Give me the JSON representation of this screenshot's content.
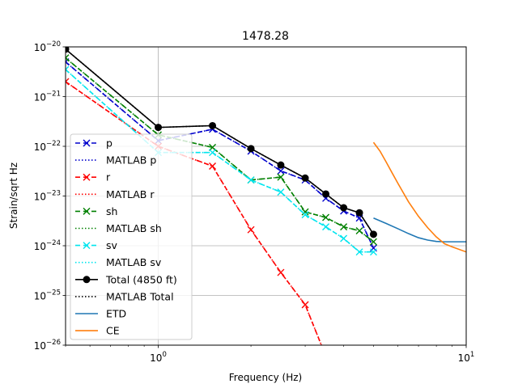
{
  "chart_data": {
    "type": "line",
    "title": "1478.28",
    "xlabel": "Frequency (Hz)",
    "ylabel": "Strain/sqrt Hz",
    "xscale": "log",
    "yscale": "log",
    "xlim": [
      0.5,
      10
    ],
    "ylim": [
      1e-26,
      1e-20
    ],
    "grid": true,
    "legend_position": "lower-left",
    "x_ticks": [
      {
        "value": 1,
        "base": "10",
        "exp": "0"
      },
      {
        "value": 10,
        "base": "10",
        "exp": "1"
      }
    ],
    "y_ticks": [
      {
        "value": 1e-26,
        "base": "10",
        "exp": "−26"
      },
      {
        "value": 1e-25,
        "base": "10",
        "exp": "−25"
      },
      {
        "value": 1e-24,
        "base": "10",
        "exp": "−24"
      },
      {
        "value": 1e-23,
        "base": "10",
        "exp": "−23"
      },
      {
        "value": 1e-22,
        "base": "10",
        "exp": "−22"
      },
      {
        "value": 1e-21,
        "base": "10",
        "exp": "−21"
      },
      {
        "value": 1e-20,
        "base": "10",
        "exp": "−20"
      }
    ],
    "series": [
      {
        "id": "p",
        "name": "p",
        "color": "#0000cc",
        "dash": "6,4",
        "marker": "x",
        "x": [
          0.5,
          1.0,
          1.5,
          2.0,
          2.5,
          3.0,
          3.5,
          4.0,
          4.5,
          5.0
        ],
        "y": [
          5e-21,
          1.3e-22,
          2.2e-22,
          8e-23,
          3.2e-23,
          2.1e-23,
          9e-24,
          5e-24,
          3.6e-24,
          9e-25
        ]
      },
      {
        "id": "matlab-p",
        "name": "MATLAB p",
        "color": "#0000cc",
        "dash": "1.5,2.5",
        "marker": "none",
        "x": [
          0.5,
          1.0,
          1.5,
          2.0,
          2.5,
          3.0,
          3.5,
          4.0,
          4.5,
          5.0
        ],
        "y": [
          5e-21,
          1.3e-22,
          2.2e-22,
          8e-23,
          3.2e-23,
          2.1e-23,
          9e-24,
          5e-24,
          3.6e-24,
          9e-25
        ]
      },
      {
        "id": "r",
        "name": "r",
        "color": "#ff0000",
        "dash": "6,4",
        "marker": "x",
        "x": [
          0.5,
          1.0,
          1.5,
          2.0,
          2.5,
          3.0,
          3.5
        ],
        "y": [
          2e-21,
          1e-22,
          4e-23,
          2.1e-24,
          2.9e-25,
          6.5e-26,
          6e-27
        ]
      },
      {
        "id": "matlab-r",
        "name": "MATLAB r",
        "color": "#ff0000",
        "dash": "1.5,2.5",
        "marker": "none",
        "x": [
          0.5,
          1.0,
          1.5,
          2.0,
          2.5,
          3.0,
          3.5
        ],
        "y": [
          2e-21,
          1e-22,
          4e-23,
          2.1e-24,
          2.9e-25,
          6.5e-26,
          6e-27
        ]
      },
      {
        "id": "sh",
        "name": "sh",
        "color": "#008000",
        "dash": "6,4",
        "marker": "x",
        "x": [
          0.5,
          1.0,
          1.5,
          2.0,
          2.5,
          3.0,
          3.5,
          4.0,
          4.5,
          5.0
        ],
        "y": [
          6e-21,
          1.7e-22,
          9.5e-23,
          2.1e-23,
          2.4e-23,
          4.8e-24,
          3.7e-24,
          2.4e-24,
          2e-24,
          1.2e-24
        ]
      },
      {
        "id": "matlab-sh",
        "name": "MATLAB sh",
        "color": "#008000",
        "dash": "1.5,2.5",
        "marker": "none",
        "x": [
          0.5,
          1.0,
          1.5,
          2.0,
          2.5,
          3.0,
          3.5,
          4.0,
          4.5,
          5.0
        ],
        "y": [
          6e-21,
          1.7e-22,
          9.5e-23,
          2.1e-23,
          2.4e-23,
          4.8e-24,
          3.7e-24,
          2.4e-24,
          2e-24,
          1.2e-24
        ]
      },
      {
        "id": "sv",
        "name": "sv",
        "color": "#00e5ee",
        "dash": "6,4",
        "marker": "x",
        "x": [
          0.5,
          1.0,
          1.5,
          2.0,
          2.5,
          3.0,
          3.5,
          4.0,
          4.5,
          5.0
        ],
        "y": [
          3.5e-21,
          7.5e-23,
          7.5e-23,
          2.1e-23,
          1.2e-23,
          4.2e-24,
          2.4e-24,
          1.4e-24,
          7.5e-25,
          7.5e-25
        ]
      },
      {
        "id": "matlab-sv",
        "name": "MATLAB sv",
        "color": "#00e5ee",
        "dash": "1.5,2.5",
        "marker": "none",
        "x": [
          0.5,
          1.0,
          1.5,
          2.0,
          2.5,
          3.0,
          3.5,
          4.0,
          4.5,
          5.0
        ],
        "y": [
          3.5e-21,
          7.5e-23,
          7.5e-23,
          2.1e-23,
          1.2e-23,
          4.2e-24,
          2.4e-24,
          1.4e-24,
          7.5e-25,
          7.5e-25
        ]
      },
      {
        "id": "total",
        "name": "Total (4850 ft)",
        "color": "#000000",
        "dash": "",
        "marker": "o",
        "x": [
          0.5,
          1.0,
          1.5,
          2.0,
          2.5,
          3.0,
          3.5,
          4.0,
          4.5,
          5.0
        ],
        "y": [
          9e-21,
          2.4e-22,
          2.6e-22,
          9e-23,
          4.2e-23,
          2.3e-23,
          1.1e-23,
          5.8e-24,
          4.6e-24,
          1.7e-24
        ]
      },
      {
        "id": "matlab-total",
        "name": "MATLAB Total",
        "color": "#000000",
        "dash": "1.5,2.5",
        "marker": "none",
        "x": [
          0.5,
          1.0,
          1.5,
          2.0,
          2.5,
          3.0,
          3.5,
          4.0,
          4.5,
          5.0
        ],
        "y": [
          9e-21,
          2.4e-22,
          2.6e-22,
          9e-23,
          4.2e-23,
          2.3e-23,
          1.1e-23,
          5.8e-24,
          4.6e-24,
          1.7e-24
        ]
      },
      {
        "id": "etd",
        "name": "ETD",
        "color": "#1f77b4",
        "dash": "",
        "marker": "none",
        "x": [
          5.0,
          5.5,
          6.0,
          6.5,
          7.0,
          7.5,
          8.0,
          8.5,
          9.0,
          10.0
        ],
        "y": [
          3.6e-24,
          2.8e-24,
          2.2e-24,
          1.75e-24,
          1.45e-24,
          1.3e-24,
          1.22e-24,
          1.2e-24,
          1.2e-24,
          1.2e-24
        ]
      },
      {
        "id": "ce",
        "name": "CE",
        "color": "#ff7f0e",
        "dash": "",
        "marker": "none",
        "x": [
          5.0,
          5.25,
          5.5,
          5.75,
          6.0,
          6.5,
          7.0,
          7.5,
          8.0,
          8.5,
          9.0,
          10.0
        ],
        "y": [
          1.2e-22,
          8e-23,
          4.8e-23,
          2.9e-23,
          1.8e-23,
          7.6e-24,
          3.9e-24,
          2.3e-24,
          1.5e-24,
          1.1e-24,
          9.5e-25,
          7.5e-25
        ]
      }
    ]
  }
}
